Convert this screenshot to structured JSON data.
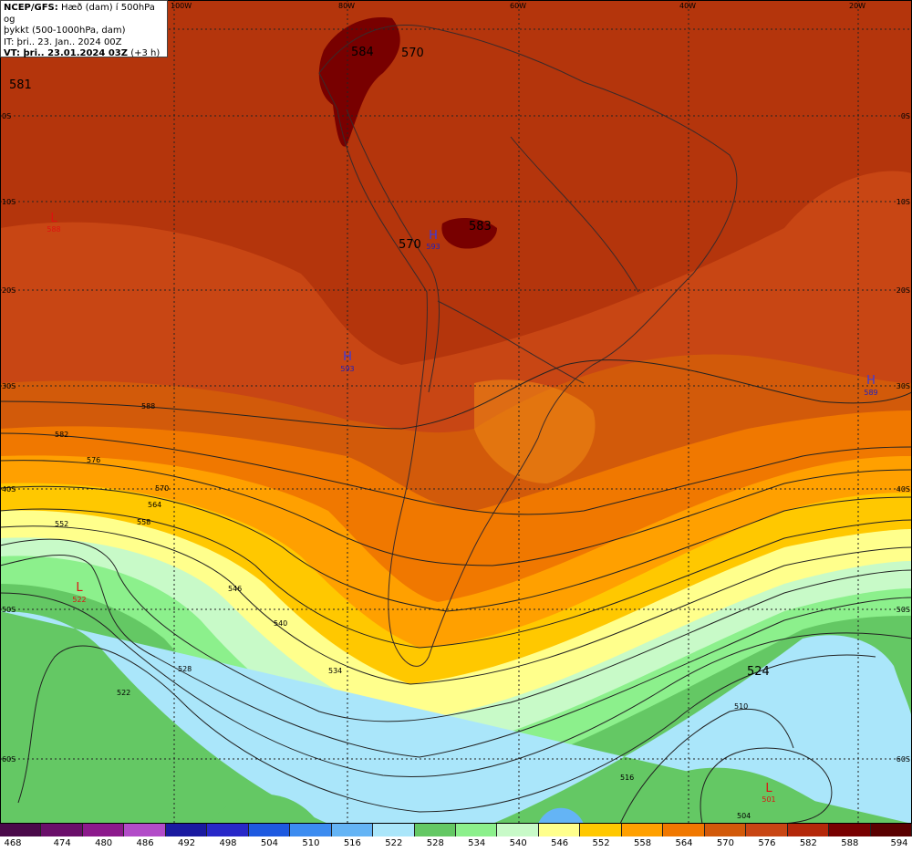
{
  "info": {
    "line1_bold": "NCEP/GFS:",
    "line1_rest": " Hæð (dam) í 500hPa og",
    "line2": "þykkt (500-1000hPa, dam)",
    "line3": "IT: þri.. 23. Jan.. 2024 00Z",
    "line4_bold": "VT: þri.. 23.01.2024 03Z",
    "line4_rest": " (+3 h)"
  },
  "axes": {
    "longitudes": [
      "100W",
      "80W",
      "60W",
      "40W",
      "20W"
    ],
    "latitudes": [
      "0S",
      "10S",
      "20S",
      "30S",
      "40S",
      "50S",
      "60S"
    ]
  },
  "colorbar": {
    "values": [
      "468",
      "474",
      "480",
      "486",
      "492",
      "498",
      "504",
      "510",
      "516",
      "522",
      "528",
      "534",
      "540",
      "546",
      "552",
      "558",
      "564",
      "570",
      "576",
      "582",
      "588",
      "594"
    ],
    "colors": [
      "#4a0a4a",
      "#6a0f6a",
      "#8c1a8c",
      "#b24cc8",
      "#1a1aa0",
      "#2828c8",
      "#1e5ae0",
      "#3c8cf0",
      "#64b4f5",
      "#aae6fa",
      "#64c864",
      "#8cf08c",
      "#c8fac8",
      "#ffff8c",
      "#ffc800",
      "#ffa000",
      "#f07800",
      "#d25a0a",
      "#c84614",
      "#b4280a",
      "#780000",
      "#5a0000"
    ]
  },
  "heights": [
    {
      "text": "581"
    },
    {
      "text": "584"
    },
    {
      "text": "570"
    },
    {
      "text": "583"
    },
    {
      "text": "570"
    },
    {
      "text": "524"
    }
  ],
  "highs": [
    {
      "letter": "H",
      "value": "593"
    },
    {
      "letter": "H",
      "value": "593"
    },
    {
      "letter": "H",
      "value": "589"
    }
  ],
  "lows": [
    {
      "letter": "L",
      "value": "588"
    },
    {
      "letter": "L",
      "value": "522"
    },
    {
      "letter": "L",
      "value": "501"
    }
  ],
  "contour_labels": [
    "588",
    "582",
    "576",
    "570",
    "564",
    "558",
    "552",
    "546",
    "540",
    "534",
    "528",
    "522",
    "516",
    "510",
    "504"
  ]
}
